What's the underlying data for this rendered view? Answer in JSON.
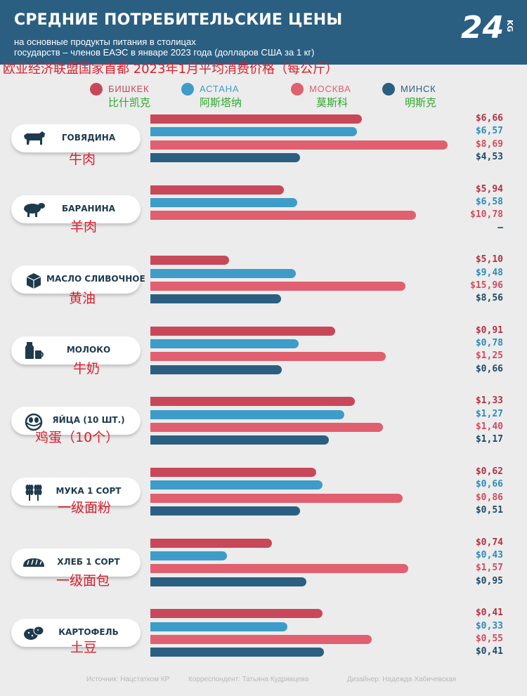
{
  "header": {
    "title": "СРЕДНИЕ ПОТРЕБИТЕЛЬСКИЕ ЦЕНЫ",
    "subtitle_line1": "на основные продукты питания в столицах",
    "subtitle_line2": "государств – членов ЕАЭС в январе 2023 года (долларов США за 1 кг)",
    "logo_text": "24",
    "logo_sub": "KG",
    "chinese_title": "欧亚经济联盟国家首都 2023年1月平均消费价格（每公斤）"
  },
  "colors": {
    "header": "#2b5f82",
    "background": "#ececec",
    "bishkek": "#c8485a",
    "astana": "#3e9cc9",
    "moskva": "#e06070",
    "minsk": "#2b5f82",
    "chinese_text": "#d9202e",
    "chinese_legend": "#2fa82c"
  },
  "legend": [
    {
      "label": "БИШКЕК",
      "cn": "比什凯克",
      "color": "#c8485a"
    },
    {
      "label": "АСТАНА",
      "cn": "阿斯塔纳",
      "color": "#3e9cc9"
    },
    {
      "label": "МОСКВА",
      "cn": "莫斯科",
      "color": "#e06070"
    },
    {
      "label": "МИНСК",
      "cn": "明斯克",
      "color": "#2b5f82"
    }
  ],
  "chart_data": {
    "type": "bar",
    "orientation": "horizontal",
    "title": "СРЕДНИЕ ПОТРЕБИТЕЛЬСКИЕ ЦЕНЫ",
    "series_names": [
      "БИШКЕК",
      "АСТАНА",
      "МОСКВА",
      "МИНСК"
    ],
    "categories": [
      {
        "label": "ГОВЯДИНА",
        "cn": "牛肉",
        "icon": "cow-icon",
        "values": [
          6.66,
          6.57,
          8.69,
          4.53
        ],
        "labels": [
          "$6,66",
          "$6,57",
          "$8,69",
          "$4,53"
        ],
        "fill": [
          0.706,
          0.69,
          0.994,
          0.5
        ]
      },
      {
        "label": "БАРАНИНА",
        "cn": "羊肉",
        "icon": "sheep-icon",
        "values": [
          5.94,
          6.58,
          10.78,
          null
        ],
        "labels": [
          "$5,94",
          "$6,58",
          "$10,78",
          "–"
        ],
        "fill": [
          0.447,
          0.49,
          0.887,
          0
        ]
      },
      {
        "label": "МАСЛО СЛИВОЧНОЕ",
        "cn": "黄油",
        "icon": "butter-icon",
        "values": [
          5.1,
          9.48,
          15.96,
          8.56
        ],
        "labels": [
          "$5,10",
          "$9,48",
          "$15,96",
          "$8,56"
        ],
        "fill": [
          0.264,
          0.486,
          0.851,
          0.436
        ]
      },
      {
        "label": "МОЛОКО",
        "cn": "牛奶",
        "icon": "milk-icon",
        "values": [
          0.91,
          0.78,
          1.25,
          0.66
        ],
        "labels": [
          "$0,91",
          "$0,78",
          "$1,25",
          "$0,66"
        ],
        "fill": [
          0.617,
          0.495,
          0.787,
          0.44
        ]
      },
      {
        "label": "ЯЙЦА (10 ШТ.)",
        "cn": "鸡蛋（10个）",
        "icon": "eggs-icon",
        "values": [
          1.33,
          1.27,
          1.4,
          1.17
        ],
        "labels": [
          "$1,33",
          "$1,27",
          "$1,40",
          "$1,17"
        ],
        "fill": [
          0.684,
          0.649,
          0.777,
          0.596
        ]
      },
      {
        "label": "МУКА 1 СОРТ",
        "cn": "一级面粉",
        "icon": "wheat-icon",
        "values": [
          0.62,
          0.66,
          0.86,
          0.51
        ],
        "labels": [
          "$0,62",
          "$0,66",
          "$0,86",
          "$0,51"
        ],
        "fill": [
          0.553,
          0.574,
          0.842,
          0.5
        ]
      },
      {
        "label": "ХЛЕБ 1 СОРТ",
        "cn": "一级面包",
        "icon": "bread-icon",
        "values": [
          0.74,
          0.43,
          1.57,
          0.95
        ],
        "labels": [
          "$0,74",
          "$0,43",
          "$1,57",
          "$0,95"
        ],
        "fill": [
          0.406,
          0.255,
          0.862,
          0.521
        ]
      },
      {
        "label": "КАРТОФЕЛЬ",
        "cn": "土豆",
        "icon": "potato-icon",
        "values": [
          0.41,
          0.33,
          0.55,
          0.41
        ],
        "labels": [
          "$0,41",
          "$0,33",
          "$0,55",
          "$0,41"
        ],
        "fill": [
          0.574,
          0.457,
          0.74,
          0.579
        ]
      }
    ]
  },
  "footer": {
    "source": "Источник: Нацстатком КР",
    "correspondent": "Корреспондент: Татьяна Кудрявцева",
    "designer": "Дизайнер: Надежда Хабичевская"
  }
}
